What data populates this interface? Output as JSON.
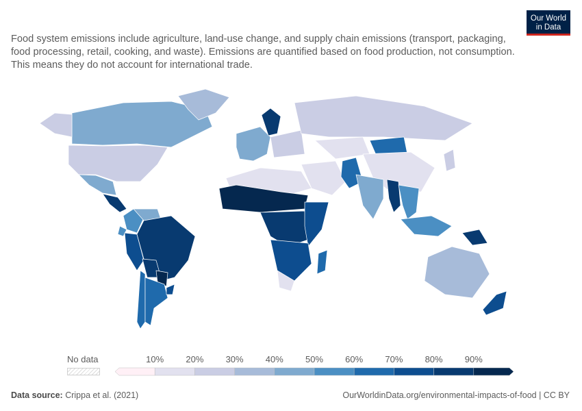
{
  "header": {
    "subtitle": "Food system emissions include agriculture, land-use change, and supply chain emissions (transport, packaging, food processing, retail, cooking, and waste). Emissions are quantified based on food production, not consumption. This means they do not account for international trade.",
    "logo_line1": "Our World",
    "logo_line2": "in Data"
  },
  "legend": {
    "no_data_label": "No data",
    "ticks": [
      "10%",
      "20%",
      "30%",
      "40%",
      "50%",
      "60%",
      "70%",
      "80%",
      "90%"
    ],
    "bin_colors": [
      "#fff0f6",
      "#e2e1ef",
      "#cacde4",
      "#a7bbd9",
      "#7faacf",
      "#4b8fc3",
      "#1f6aac",
      "#0d4d8f",
      "#083a70",
      "#05284f"
    ]
  },
  "footer": {
    "source_label": "Data source:",
    "source_value": "Crippa et al. (2021)",
    "url": "OurWorldinData.org/environmental-impacts-of-food | CC BY"
  },
  "map_data": {
    "regions": [
      {
        "name": "Canada",
        "bin": 4
      },
      {
        "name": "United States",
        "bin": 2
      },
      {
        "name": "Alaska",
        "bin": 2
      },
      {
        "name": "Greenland",
        "bin": 3
      },
      {
        "name": "Mexico",
        "bin": 4
      },
      {
        "name": "Central America",
        "bin": 8
      },
      {
        "name": "Colombia",
        "bin": 5
      },
      {
        "name": "Venezuela",
        "bin": 4
      },
      {
        "name": "Ecuador",
        "bin": 5
      },
      {
        "name": "Peru",
        "bin": 7
      },
      {
        "name": "Brazil",
        "bin": 8
      },
      {
        "name": "Bolivia",
        "bin": 8
      },
      {
        "name": "Paraguay",
        "bin": 9
      },
      {
        "name": "Chile",
        "bin": 6
      },
      {
        "name": "Argentina",
        "bin": 6
      },
      {
        "name": "Uruguay",
        "bin": 7
      },
      {
        "name": "Europe West",
        "bin": 4
      },
      {
        "name": "Scandinavia",
        "bin": 8
      },
      {
        "name": "Eastern Europe",
        "bin": 2
      },
      {
        "name": "Russia",
        "bin": 2
      },
      {
        "name": "North Africa",
        "bin": 1
      },
      {
        "name": "Sahel",
        "bin": 9
      },
      {
        "name": "Central Africa",
        "bin": 8
      },
      {
        "name": "East Africa",
        "bin": 7
      },
      {
        "name": "Southern Africa",
        "bin": 7
      },
      {
        "name": "South Africa",
        "bin": 1
      },
      {
        "name": "Madagascar",
        "bin": 6
      },
      {
        "name": "Middle East",
        "bin": 1
      },
      {
        "name": "Kazakhstan",
        "bin": 1
      },
      {
        "name": "Mongolia",
        "bin": 6
      },
      {
        "name": "China",
        "bin": 1
      },
      {
        "name": "Pakistan",
        "bin": 6
      },
      {
        "name": "India",
        "bin": 4
      },
      {
        "name": "Myanmar",
        "bin": 8
      },
      {
        "name": "Southeast Asia",
        "bin": 5
      },
      {
        "name": "Indonesia",
        "bin": 5
      },
      {
        "name": "Papua New Guinea",
        "bin": 8
      },
      {
        "name": "Australia",
        "bin": 3
      },
      {
        "name": "New Zealand",
        "bin": 7
      },
      {
        "name": "Japan",
        "bin": 2
      }
    ]
  }
}
